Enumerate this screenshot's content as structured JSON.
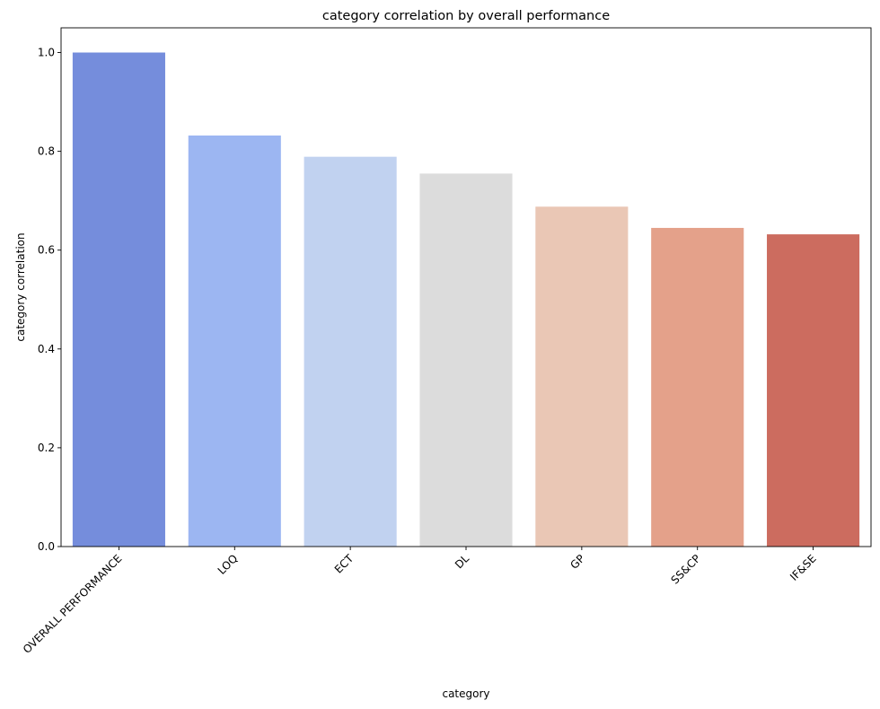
{
  "chart_data": {
    "type": "bar",
    "title": "category correlation by overall performance",
    "xlabel": "category",
    "ylabel": "category correlation",
    "categories": [
      "OVERALL PERFORMANCE",
      "LOQ",
      "ECT",
      "DL",
      "GP",
      "SS&CP",
      "IF&SE"
    ],
    "values": [
      1.0,
      0.832,
      0.789,
      0.755,
      0.688,
      0.645,
      0.632
    ],
    "colors": [
      "#758ddc",
      "#9cb6f2",
      "#c1d2f0",
      "#dcdcdc",
      "#eac7b5",
      "#e4a18a",
      "#cc6c5f"
    ],
    "ylim": [
      0,
      1.05
    ],
    "yticks": [
      "0.0",
      "0.2",
      "0.4",
      "0.6",
      "0.8",
      "1.0"
    ],
    "grid": false,
    "legend": "none"
  }
}
